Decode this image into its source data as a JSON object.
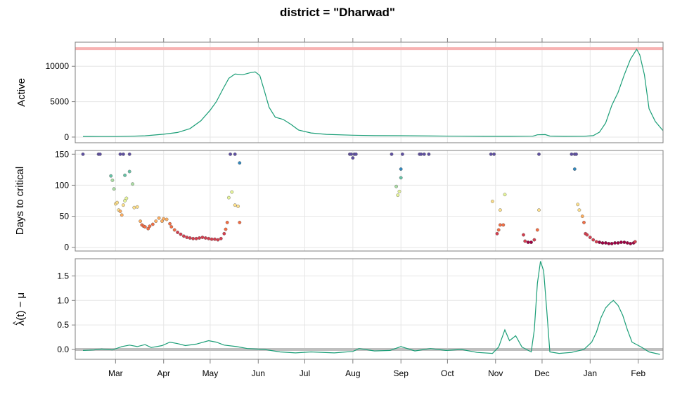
{
  "colors": {
    "series": "#1b9e77",
    "ref_active": "#f7b3b3",
    "ref_lambda": "#bfbfbf",
    "grid": "#e6e6e6",
    "frame": "#7f7f7f",
    "palette": [
      "#9e0142",
      "#d53e4f",
      "#f46d43",
      "#fdae61",
      "#fee08b",
      "#e6f598",
      "#abdda4",
      "#66c2a5",
      "#3288bd",
      "#5e4fa2"
    ]
  },
  "chart_data": [
    {
      "type": "line",
      "title": "district = \"Dharwad\"",
      "ylabel": "Active",
      "xlim": [
        "2021-02-03",
        "2022-02-17"
      ],
      "ylim": [
        -800,
        13400
      ],
      "yticks": [
        0,
        5000,
        10000
      ],
      "x_tick_labels": [
        "Mar",
        "Apr",
        "May",
        "Jun",
        "Jul",
        "Aug",
        "Sep",
        "Oct",
        "Nov",
        "Dec",
        "Jan",
        "Feb"
      ],
      "x_tick_dates": [
        "2021-03-01",
        "2021-04-01",
        "2021-05-01",
        "2021-06-01",
        "2021-07-01",
        "2021-08-01",
        "2021-09-01",
        "2021-10-01",
        "2021-11-01",
        "2021-12-01",
        "2022-01-01",
        "2022-02-01"
      ],
      "reference_line": 12500,
      "series": [
        {
          "points": [
            [
              "2021-02-08",
              80
            ],
            [
              "2021-02-20",
              70
            ],
            [
              "2021-03-01",
              75
            ],
            [
              "2021-03-10",
              110
            ],
            [
              "2021-03-20",
              180
            ],
            [
              "2021-04-01",
              400
            ],
            [
              "2021-04-10",
              650
            ],
            [
              "2021-04-18",
              1200
            ],
            [
              "2021-04-25",
              2300
            ],
            [
              "2021-05-01",
              3800
            ],
            [
              "2021-05-05",
              5000
            ],
            [
              "2021-05-09",
              6700
            ],
            [
              "2021-05-13",
              8300
            ],
            [
              "2021-05-17",
              8900
            ],
            [
              "2021-05-22",
              8800
            ],
            [
              "2021-05-27",
              9100
            ],
            [
              "2021-05-30",
              9200
            ],
            [
              "2021-06-02",
              8700
            ],
            [
              "2021-06-05",
              6500
            ],
            [
              "2021-06-08",
              4200
            ],
            [
              "2021-06-12",
              2800
            ],
            [
              "2021-06-17",
              2500
            ],
            [
              "2021-06-22",
              1800
            ],
            [
              "2021-06-27",
              1000
            ],
            [
              "2021-07-05",
              580
            ],
            [
              "2021-07-15",
              380
            ],
            [
              "2021-08-01",
              260
            ],
            [
              "2021-08-15",
              200
            ],
            [
              "2021-09-01",
              190
            ],
            [
              "2021-09-20",
              150
            ],
            [
              "2021-10-10",
              120
            ],
            [
              "2021-10-25",
              100
            ],
            [
              "2021-11-10",
              100
            ],
            [
              "2021-11-25",
              120
            ],
            [
              "2021-11-28",
              320
            ],
            [
              "2021-12-03",
              350
            ],
            [
              "2021-12-06",
              140
            ],
            [
              "2021-12-15",
              100
            ],
            [
              "2021-12-28",
              110
            ],
            [
              "2022-01-03",
              200
            ],
            [
              "2022-01-07",
              700
            ],
            [
              "2022-01-11",
              2000
            ],
            [
              "2022-01-15",
              4500
            ],
            [
              "2022-01-19",
              6300
            ],
            [
              "2022-01-23",
              8800
            ],
            [
              "2022-01-27",
              11000
            ],
            [
              "2022-01-31",
              12400
            ],
            [
              "2022-02-02",
              11600
            ],
            [
              "2022-02-05",
              8800
            ],
            [
              "2022-02-08",
              4000
            ],
            [
              "2022-02-12",
              2200
            ],
            [
              "2022-02-17",
              900
            ]
          ]
        }
      ]
    },
    {
      "type": "scatter",
      "ylabel": "Days to critical",
      "xlim": [
        "2021-02-03",
        "2022-02-17"
      ],
      "ylim": [
        -6,
        156
      ],
      "yticks": [
        0,
        50,
        100,
        150
      ],
      "color_scale": "value",
      "points": [
        [
          "2021-02-08",
          150
        ],
        [
          "2021-02-18",
          150
        ],
        [
          "2021-02-19",
          150
        ],
        [
          "2021-03-04",
          150
        ],
        [
          "2021-03-06",
          150
        ],
        [
          "2021-03-10",
          150
        ],
        [
          "2021-02-26",
          115
        ],
        [
          "2021-02-27",
          108
        ],
        [
          "2021-03-07",
          116
        ],
        [
          "2021-03-10",
          122
        ],
        [
          "2021-03-12",
          102
        ],
        [
          "2021-02-28",
          94
        ],
        [
          "2021-03-01",
          70
        ],
        [
          "2021-03-02",
          72
        ],
        [
          "2021-03-03",
          60
        ],
        [
          "2021-03-04",
          58
        ],
        [
          "2021-03-05",
          52
        ],
        [
          "2021-03-06",
          68
        ],
        [
          "2021-03-07",
          75
        ],
        [
          "2021-03-08",
          79
        ],
        [
          "2021-03-13",
          64
        ],
        [
          "2021-03-15",
          65
        ],
        [
          "2021-03-17",
          42
        ],
        [
          "2021-03-18",
          36
        ],
        [
          "2021-03-19",
          34
        ],
        [
          "2021-03-20",
          33
        ],
        [
          "2021-03-22",
          30
        ],
        [
          "2021-03-23",
          34
        ],
        [
          "2021-03-25",
          37
        ],
        [
          "2021-03-27",
          42
        ],
        [
          "2021-03-29",
          47
        ],
        [
          "2021-03-31",
          42
        ],
        [
          "2021-04-01",
          46
        ],
        [
          "2021-04-03",
          45
        ],
        [
          "2021-04-05",
          38
        ],
        [
          "2021-04-06",
          33
        ],
        [
          "2021-04-08",
          28
        ],
        [
          "2021-04-10",
          24
        ],
        [
          "2021-04-12",
          21
        ],
        [
          "2021-04-14",
          18
        ],
        [
          "2021-04-16",
          16
        ],
        [
          "2021-04-18",
          15
        ],
        [
          "2021-04-20",
          14
        ],
        [
          "2021-04-22",
          14
        ],
        [
          "2021-04-24",
          15
        ],
        [
          "2021-04-26",
          16
        ],
        [
          "2021-04-28",
          15
        ],
        [
          "2021-04-30",
          14
        ],
        [
          "2021-05-02",
          13
        ],
        [
          "2021-05-04",
          13
        ],
        [
          "2021-05-06",
          12
        ],
        [
          "2021-05-08",
          14
        ],
        [
          "2021-05-10",
          22
        ],
        [
          "2021-05-11",
          29
        ],
        [
          "2021-05-12",
          40
        ],
        [
          "2021-05-13",
          80
        ],
        [
          "2021-05-15",
          89
        ],
        [
          "2021-05-17",
          68
        ],
        [
          "2021-05-19",
          66
        ],
        [
          "2021-05-20",
          40
        ],
        [
          "2021-05-14",
          150
        ],
        [
          "2021-05-17",
          150
        ],
        [
          "2021-05-20",
          136
        ],
        [
          "2021-07-30",
          150
        ],
        [
          "2021-07-31",
          150
        ],
        [
          "2021-08-01",
          144
        ],
        [
          "2021-08-02",
          150
        ],
        [
          "2021-08-03",
          150
        ],
        [
          "2021-08-26",
          150
        ],
        [
          "2021-08-29",
          98
        ],
        [
          "2021-08-30",
          84
        ],
        [
          "2021-08-31",
          90
        ],
        [
          "2021-09-01",
          126
        ],
        [
          "2021-09-01",
          112
        ],
        [
          "2021-09-02",
          150
        ],
        [
          "2021-09-13",
          150
        ],
        [
          "2021-09-14",
          150
        ],
        [
          "2021-09-16",
          150
        ],
        [
          "2021-09-19",
          150
        ],
        [
          "2021-10-29",
          150
        ],
        [
          "2021-10-31",
          150
        ],
        [
          "2021-10-30",
          74
        ],
        [
          "2021-11-04",
          60
        ],
        [
          "2021-11-07",
          85
        ],
        [
          "2021-11-02",
          22
        ],
        [
          "2021-11-03",
          28
        ],
        [
          "2021-11-04",
          36
        ],
        [
          "2021-11-06",
          36
        ],
        [
          "2021-11-19",
          20
        ],
        [
          "2021-11-20",
          10
        ],
        [
          "2021-11-22",
          8
        ],
        [
          "2021-11-24",
          8
        ],
        [
          "2021-11-26",
          12
        ],
        [
          "2021-11-28",
          28
        ],
        [
          "2021-11-29",
          60
        ],
        [
          "2021-11-29",
          150
        ],
        [
          "2021-12-20",
          150
        ],
        [
          "2021-12-22",
          150
        ],
        [
          "2021-12-23",
          150
        ],
        [
          "2021-12-22",
          126
        ],
        [
          "2021-12-24",
          69
        ],
        [
          "2021-12-25",
          60
        ],
        [
          "2021-12-27",
          50
        ],
        [
          "2021-12-28",
          40
        ],
        [
          "2021-12-29",
          22
        ],
        [
          "2021-12-30",
          20
        ],
        [
          "2022-01-01",
          16
        ],
        [
          "2022-01-03",
          12
        ],
        [
          "2022-01-05",
          9
        ],
        [
          "2022-01-07",
          8
        ],
        [
          "2022-01-09",
          7
        ],
        [
          "2022-01-11",
          7
        ],
        [
          "2022-01-13",
          6
        ],
        [
          "2022-01-15",
          6
        ],
        [
          "2022-01-17",
          7
        ],
        [
          "2022-01-19",
          7
        ],
        [
          "2022-01-21",
          8
        ],
        [
          "2022-01-23",
          8
        ],
        [
          "2022-01-25",
          7
        ],
        [
          "2022-01-27",
          6
        ],
        [
          "2022-01-29",
          7
        ],
        [
          "2022-01-30",
          9
        ]
      ]
    },
    {
      "type": "line",
      "ylabel": "λ(t) − μ",
      "ylabel_accent": "^",
      "xlim": [
        "2021-02-03",
        "2022-02-17"
      ],
      "ylim": [
        -0.2,
        1.85
      ],
      "yticks": [
        "0.0",
        "0.5",
        "1.0",
        "1.5"
      ],
      "reference_line": 0,
      "series": [
        {
          "points": [
            [
              "2021-02-08",
              -0.02
            ],
            [
              "2021-02-15",
              -0.01
            ],
            [
              "2021-02-20",
              0.01
            ],
            [
              "2021-02-27",
              -0.01
            ],
            [
              "2021-03-05",
              0.06
            ],
            [
              "2021-03-10",
              0.09
            ],
            [
              "2021-03-15",
              0.06
            ],
            [
              "2021-03-20",
              0.1
            ],
            [
              "2021-03-24",
              0.04
            ],
            [
              "2021-03-31",
              0.08
            ],
            [
              "2021-04-05",
              0.15
            ],
            [
              "2021-04-10",
              0.12
            ],
            [
              "2021-04-15",
              0.08
            ],
            [
              "2021-04-22",
              0.11
            ],
            [
              "2021-04-30",
              0.18
            ],
            [
              "2021-05-05",
              0.15
            ],
            [
              "2021-05-10",
              0.09
            ],
            [
              "2021-05-18",
              0.06
            ],
            [
              "2021-05-25",
              0.02
            ],
            [
              "2021-06-05",
              0.0
            ],
            [
              "2021-06-15",
              -0.05
            ],
            [
              "2021-06-25",
              -0.07
            ],
            [
              "2021-07-05",
              -0.05
            ],
            [
              "2021-07-20",
              -0.07
            ],
            [
              "2021-08-01",
              -0.04
            ],
            [
              "2021-08-05",
              0.02
            ],
            [
              "2021-08-15",
              -0.03
            ],
            [
              "2021-08-25",
              -0.02
            ],
            [
              "2021-09-01",
              0.06
            ],
            [
              "2021-09-10",
              -0.03
            ],
            [
              "2021-09-20",
              0.02
            ],
            [
              "2021-09-30",
              -0.02
            ],
            [
              "2021-10-10",
              0.0
            ],
            [
              "2021-10-20",
              -0.06
            ],
            [
              "2021-10-30",
              -0.08
            ],
            [
              "2021-11-03",
              0.05
            ],
            [
              "2021-11-07",
              0.4
            ],
            [
              "2021-11-10",
              0.18
            ],
            [
              "2021-11-14",
              0.28
            ],
            [
              "2021-11-18",
              0.05
            ],
            [
              "2021-11-24",
              -0.05
            ],
            [
              "2021-11-26",
              0.4
            ],
            [
              "2021-11-28",
              1.35
            ],
            [
              "2021-11-30",
              1.8
            ],
            [
              "2021-12-02",
              1.6
            ],
            [
              "2021-12-04",
              0.8
            ],
            [
              "2021-12-06",
              -0.05
            ],
            [
              "2021-12-12",
              -0.08
            ],
            [
              "2021-12-20",
              -0.06
            ],
            [
              "2021-12-28",
              0.0
            ],
            [
              "2022-01-02",
              0.15
            ],
            [
              "2022-01-05",
              0.35
            ],
            [
              "2022-01-08",
              0.65
            ],
            [
              "2022-01-11",
              0.85
            ],
            [
              "2022-01-14",
              0.95
            ],
            [
              "2022-01-16",
              1.0
            ],
            [
              "2022-01-19",
              0.9
            ],
            [
              "2022-01-22",
              0.7
            ],
            [
              "2022-01-25",
              0.4
            ],
            [
              "2022-01-28",
              0.15
            ],
            [
              "2022-02-03",
              0.05
            ],
            [
              "2022-02-08",
              -0.05
            ],
            [
              "2022-02-15",
              -0.1
            ]
          ]
        }
      ]
    }
  ]
}
